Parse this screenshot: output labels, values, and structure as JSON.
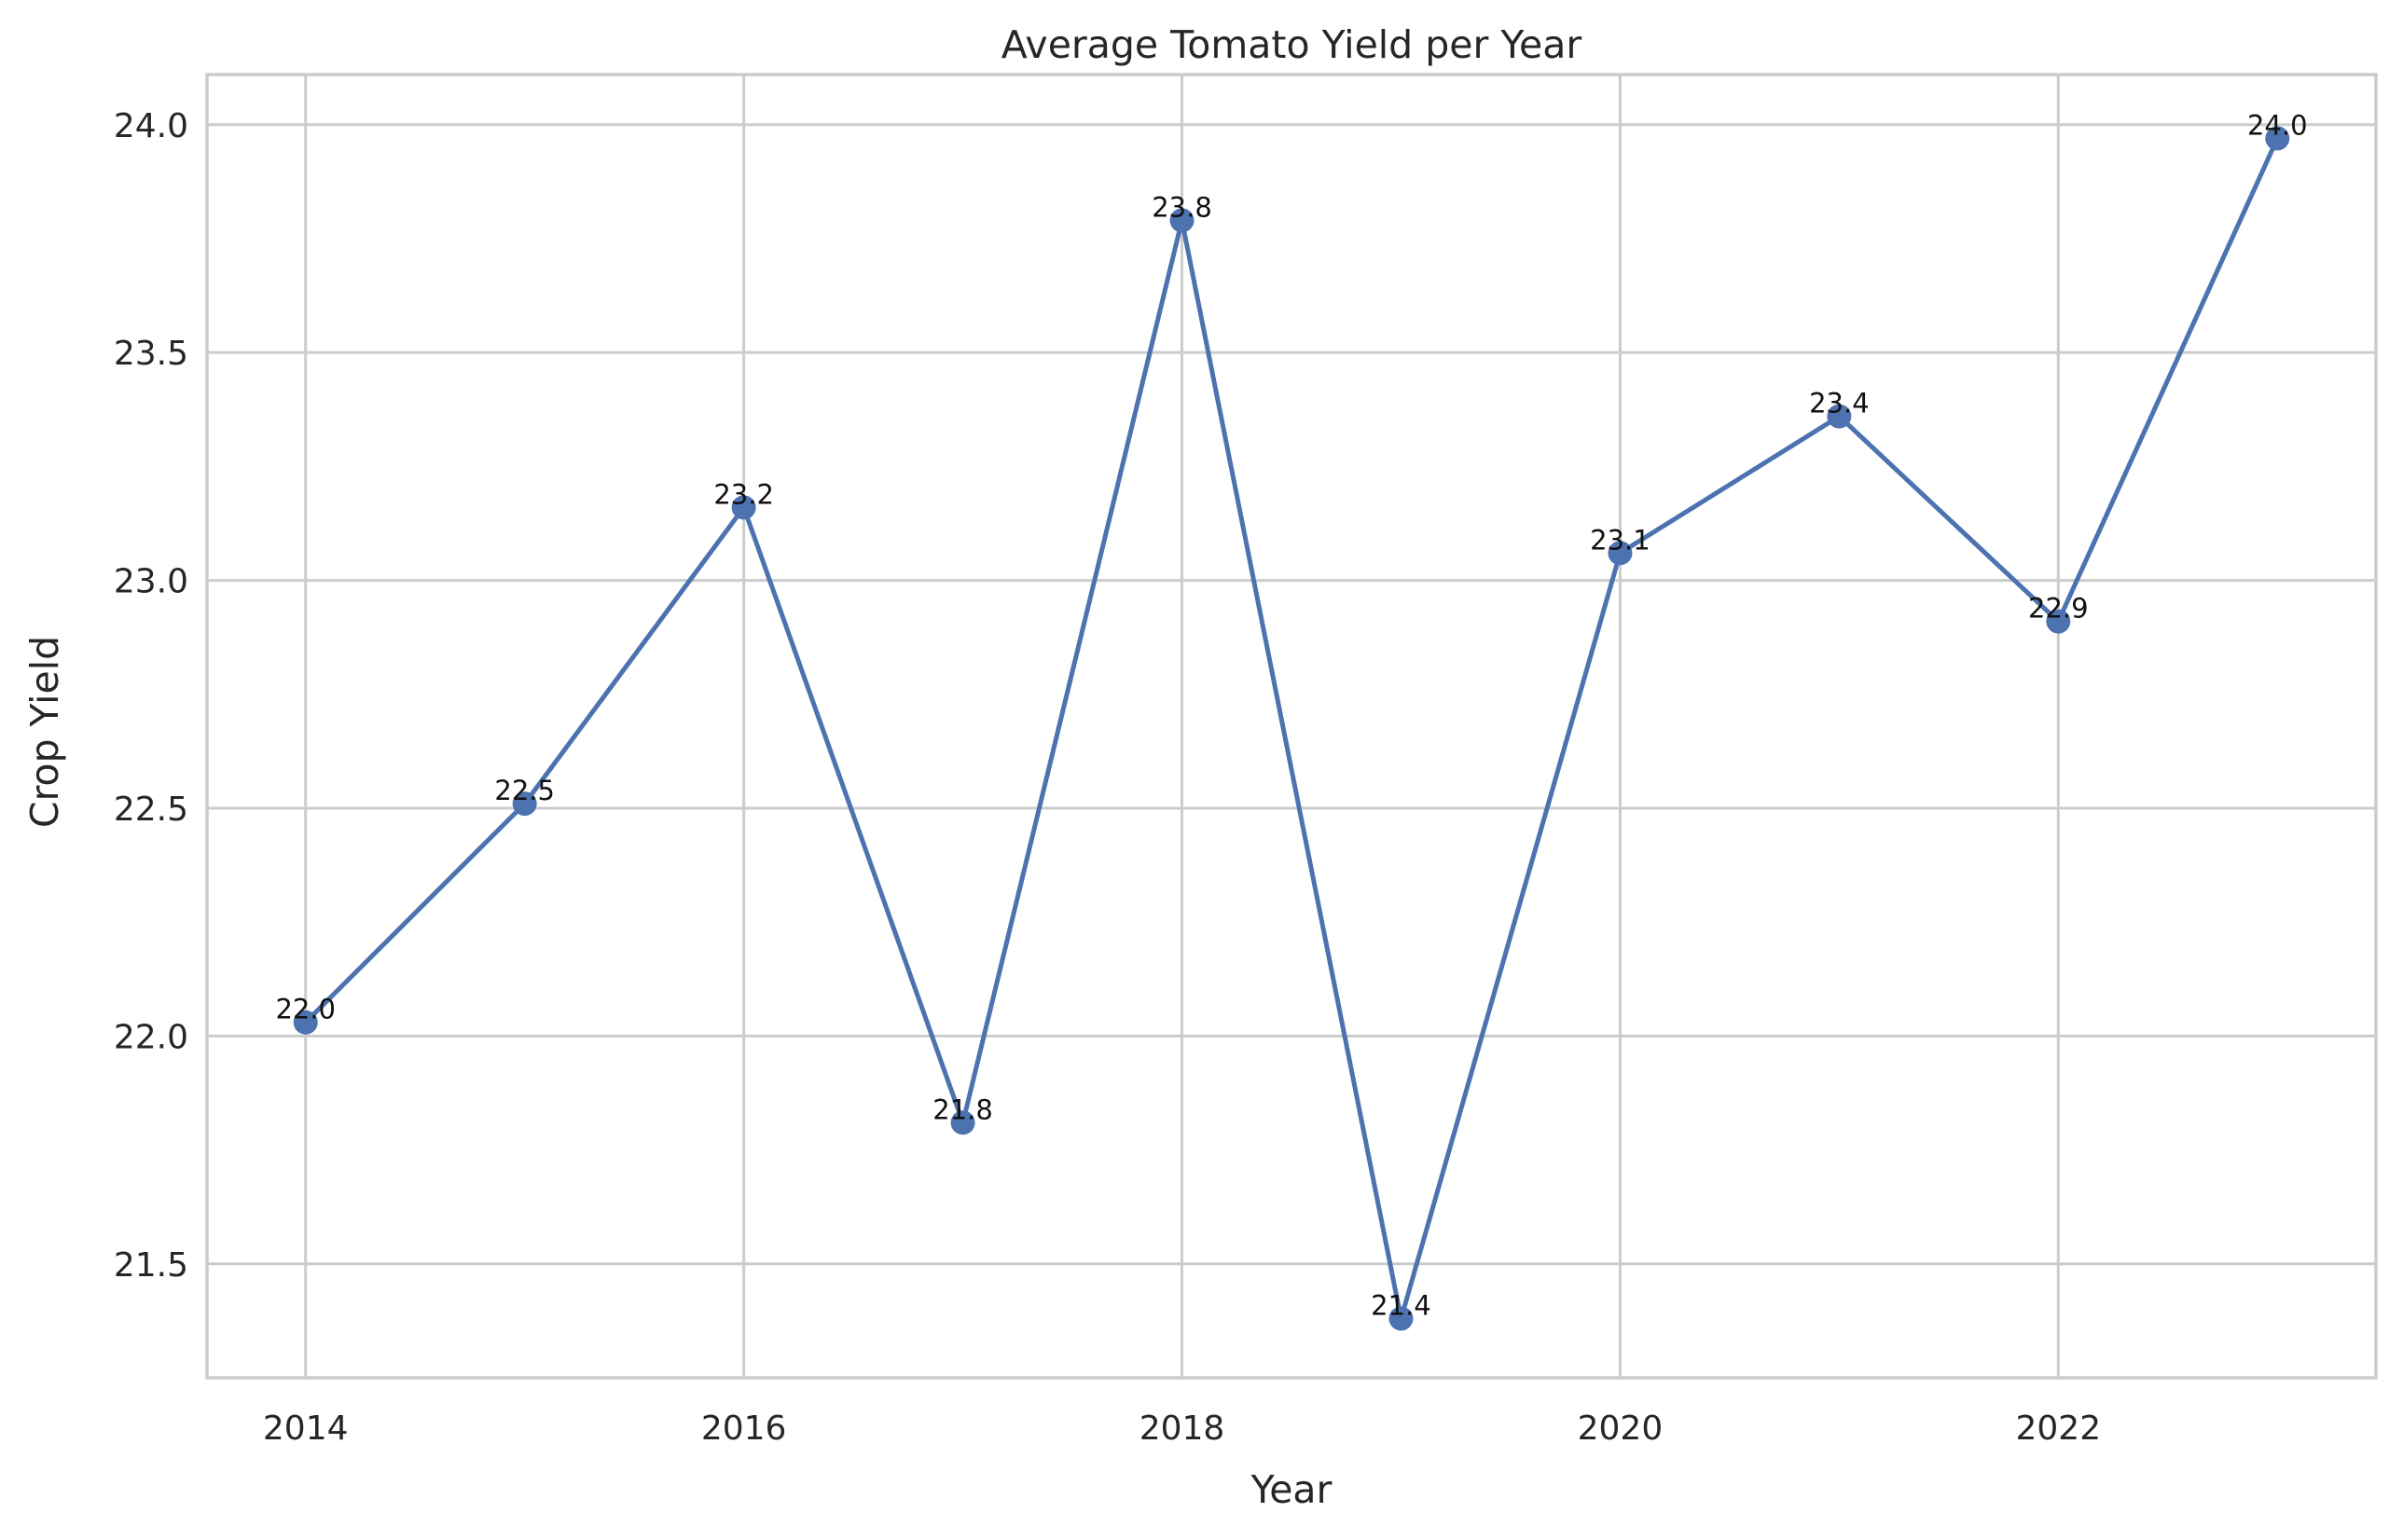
{
  "chart_data": {
    "type": "line",
    "title": "Average Tomato Yield per Year",
    "xlabel": "Year",
    "ylabel": "Crop Yield",
    "x": [
      2014,
      2015,
      2016,
      2017,
      2018,
      2019,
      2020,
      2021,
      2022,
      2023
    ],
    "series": [
      {
        "name": "Crop Yield",
        "values": [
          22.03,
          22.51,
          23.16,
          21.81,
          23.79,
          21.38,
          23.06,
          23.36,
          22.91,
          23.97
        ],
        "labels": [
          "22.0",
          "22.5",
          "23.2",
          "21.8",
          "23.8",
          "21.4",
          "23.1",
          "23.4",
          "22.9",
          "24.0"
        ]
      }
    ],
    "xticks": [
      2014,
      2016,
      2018,
      2020,
      2022
    ],
    "xtick_labels": [
      "2014",
      "2016",
      "2018",
      "2020",
      "2022"
    ],
    "yticks": [
      21.5,
      22.0,
      22.5,
      23.0,
      23.5,
      24.0
    ],
    "ytick_labels": [
      "21.5",
      "22.0",
      "22.5",
      "23.0",
      "23.5",
      "24.0"
    ],
    "xlim": [
      2013.55,
      2023.45
    ],
    "ylim": [
      21.25,
      24.11
    ],
    "grid": true,
    "line_color": "#4c72b0",
    "label_color": "#111111"
  }
}
